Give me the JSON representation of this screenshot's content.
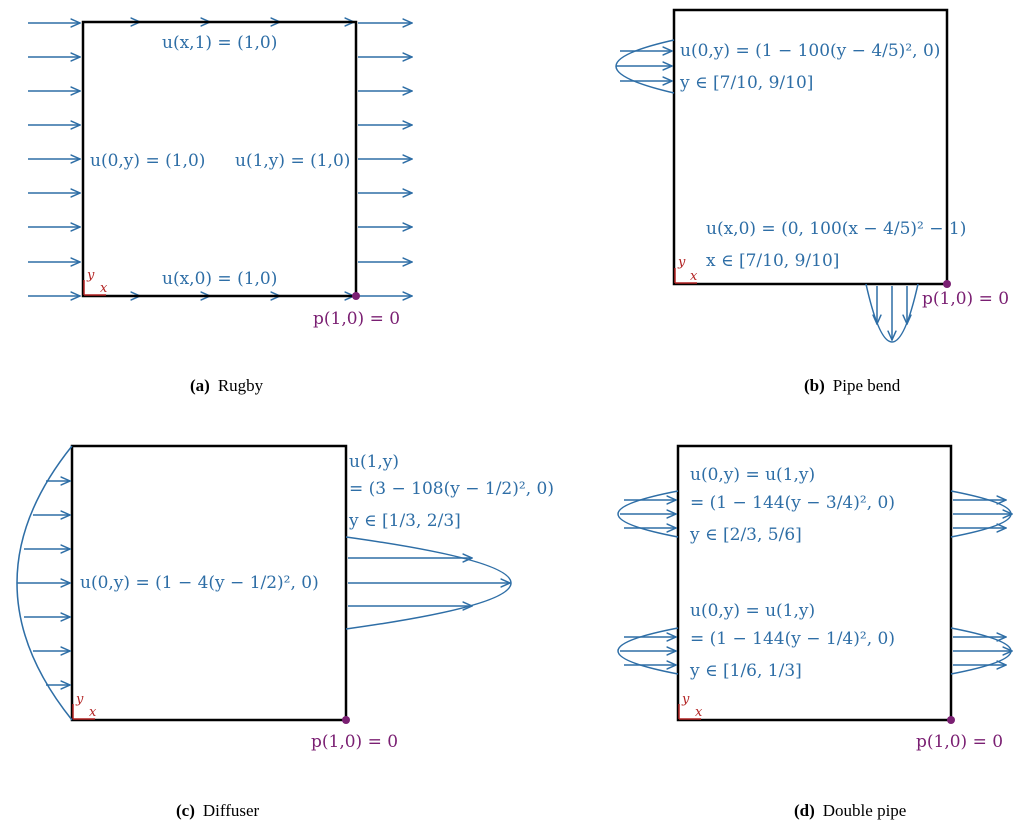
{
  "panels": {
    "a": {
      "label": "(a)",
      "name": "Rugby",
      "top": "u(x,1) = (1,0)",
      "left": "u(0,y) = (1,0)",
      "right": "u(1,y) = (1,0)",
      "bottom": "u(x,0) = (1,0)",
      "pressure": "p(1,0) = 0",
      "axis_x": "x",
      "axis_y": "y"
    },
    "b": {
      "label": "(b)",
      "name": "Pipe bend",
      "inlet_line1": "u(0,y) = (1 − 100(y − 4/5)², 0)",
      "inlet_line2": "y ∈ [7/10, 9/10]",
      "outlet_line1": "u(x,0) = (0, 100(x − 4/5)² − 1)",
      "outlet_line2": "x ∈ [7/10, 9/10]",
      "pressure": "p(1,0) = 0",
      "axis_x": "x",
      "axis_y": "y"
    },
    "c": {
      "label": "(c)",
      "name": "Diffuser",
      "inlet": "u(0,y) = (1 − 4(y − 1/2)², 0)",
      "outlet_line1": "u(1,y)",
      "outlet_line2": "= (3 − 108(y − 1/2)², 0)",
      "outlet_line3": "y ∈ [1/3, 2/3]",
      "pressure": "p(1,0) = 0",
      "axis_x": "x",
      "axis_y": "y"
    },
    "d": {
      "label": "(d)",
      "name": "Double pipe",
      "upper_line1": "u(0,y) = u(1,y)",
      "upper_line2": "= (1 − 144(y − 3/4)², 0)",
      "upper_line3": "y ∈ [2/3, 5/6]",
      "lower_line1": "u(0,y) = u(1,y)",
      "lower_line2": "= (1 − 144(y − 1/4)², 0)",
      "lower_line3": "y ∈ [1/6, 1/3]",
      "pressure": "p(1,0) = 0",
      "axis_x": "x",
      "axis_y": "y"
    }
  },
  "colors": {
    "flow": "#2e6ea6",
    "pressure": "#7a1f72",
    "axis": "#b22222"
  }
}
